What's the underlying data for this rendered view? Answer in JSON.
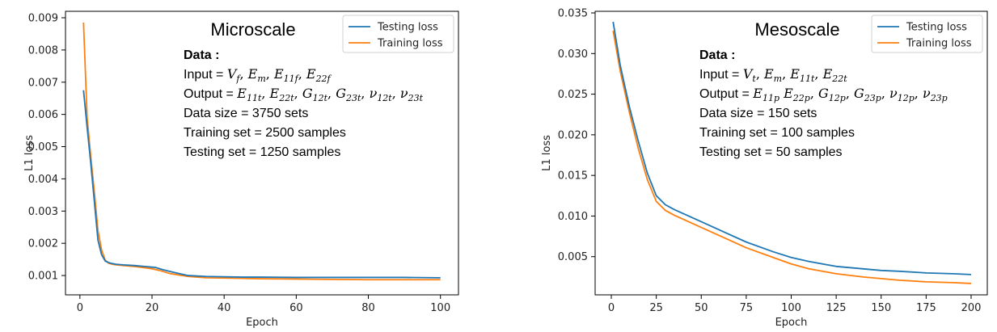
{
  "chart_data": [
    {
      "type": "line",
      "title": "Microscale",
      "xlabel": "Epoch",
      "ylabel": "L1 loss",
      "xlim": [
        -4,
        105
      ],
      "ylim": [
        0.0004,
        0.0092
      ],
      "xticks": [
        0,
        20,
        40,
        60,
        80,
        100
      ],
      "xtick_labels": [
        "0",
        "20",
        "40",
        "60",
        "80",
        "100"
      ],
      "yticks": [
        0.001,
        0.002,
        0.003,
        0.004,
        0.005,
        0.006,
        0.007,
        0.008,
        0.009
      ],
      "ytick_labels": [
        "0.001",
        "0.002",
        "0.003",
        "0.004",
        "0.005",
        "0.006",
        "0.007",
        "0.008",
        "0.009"
      ],
      "legend_position": "top-right",
      "series": [
        {
          "name": "Testing loss",
          "color": "#1f77b4",
          "x": [
            1,
            2,
            3,
            4,
            5,
            6,
            7,
            8,
            9,
            10,
            12,
            15,
            18,
            20,
            21,
            23,
            26,
            30,
            35,
            40,
            45,
            50,
            60,
            70,
            80,
            90,
            100
          ],
          "y": [
            0.00675,
            0.0056,
            0.0045,
            0.0033,
            0.0021,
            0.00165,
            0.00145,
            0.0014,
            0.00137,
            0.00135,
            0.00133,
            0.00131,
            0.00128,
            0.00126,
            0.00125,
            0.00118,
            0.0011,
            0.001,
            0.00097,
            0.00096,
            0.00095,
            0.00095,
            0.00094,
            0.00094,
            0.00094,
            0.00094,
            0.00093
          ]
        },
        {
          "name": "Training loss",
          "color": "#ff7f0e",
          "x": [
            1,
            2,
            3,
            4,
            5,
            6,
            7,
            8,
            9,
            10,
            12,
            15,
            18,
            20,
            22,
            25,
            30,
            35,
            40,
            45,
            50,
            60,
            70,
            80,
            90,
            100
          ],
          "y": [
            0.00885,
            0.0059,
            0.0047,
            0.0036,
            0.0024,
            0.0018,
            0.00148,
            0.00138,
            0.00135,
            0.00133,
            0.00131,
            0.00128,
            0.00124,
            0.00121,
            0.00116,
            0.00106,
            0.00097,
            0.00093,
            0.00092,
            0.00091,
            0.0009,
            0.00089,
            0.00088,
            0.00087,
            0.00087,
            0.00087
          ]
        }
      ],
      "annotation": {
        "heading": "Data :",
        "lines": [
          {
            "prefix": "Input = ",
            "math": "V_f, E_m, E_11f, E_22f"
          },
          {
            "prefix": "Output = ",
            "math": "E_11t, E_22t, G_12t, G_23t, ν_12t, ν_23t"
          },
          {
            "prefix": "Data size = 3750 sets",
            "math": ""
          },
          {
            "prefix": "Training set = 2500 samples",
            "math": ""
          },
          {
            "prefix": "Testing set = 1250 samples",
            "math": ""
          }
        ]
      }
    },
    {
      "type": "line",
      "title": "Mesoscale",
      "xlabel": "Epoch",
      "ylabel": "L1 loss",
      "xlim": [
        -9,
        209
      ],
      "ylim": [
        0.0003,
        0.0352
      ],
      "xticks": [
        0,
        25,
        50,
        75,
        100,
        125,
        150,
        175,
        200
      ],
      "xtick_labels": [
        "0",
        "25",
        "50",
        "75",
        "100",
        "125",
        "150",
        "175",
        "200"
      ],
      "yticks": [
        0.005,
        0.01,
        0.015,
        0.02,
        0.025,
        0.03,
        0.035
      ],
      "ytick_labels": [
        "0.005",
        "0.010",
        "0.015",
        "0.020",
        "0.025",
        "0.030",
        "0.035"
      ],
      "legend_position": "top-right",
      "series": [
        {
          "name": "Testing loss",
          "color": "#1f77b4",
          "x": [
            1,
            5,
            10,
            15,
            20,
            25,
            30,
            35,
            40,
            50,
            60,
            75,
            90,
            100,
            110,
            125,
            140,
            150,
            160,
            175,
            190,
            200
          ],
          "y": [
            0.0339,
            0.0285,
            0.0235,
            0.0192,
            0.0153,
            0.0125,
            0.0114,
            0.0108,
            0.0103,
            0.0093,
            0.0083,
            0.0068,
            0.0056,
            0.0049,
            0.0044,
            0.0038,
            0.0035,
            0.0033,
            0.0032,
            0.003,
            0.0029,
            0.0028
          ]
        },
        {
          "name": "Training loss",
          "color": "#ff7f0e",
          "x": [
            1,
            5,
            10,
            15,
            20,
            25,
            30,
            35,
            40,
            50,
            60,
            75,
            90,
            100,
            110,
            125,
            140,
            150,
            160,
            175,
            190,
            200
          ],
          "y": [
            0.0328,
            0.0278,
            0.0228,
            0.0183,
            0.0145,
            0.0118,
            0.0107,
            0.0101,
            0.0096,
            0.0086,
            0.0076,
            0.0061,
            0.0049,
            0.0041,
            0.0035,
            0.0029,
            0.0025,
            0.0023,
            0.0021,
            0.0019,
            0.0018,
            0.0017
          ]
        }
      ],
      "annotation": {
        "heading": "Data :",
        "lines": [
          {
            "prefix": "Input = ",
            "math": "V_t, E_m, E_11t, E_22t"
          },
          {
            "prefix": "Output = ",
            "math": "E_11p E_22p, G_12p, G_23p, ν_12p, ν_23p"
          },
          {
            "prefix": "Data size = 150 sets",
            "math": ""
          },
          {
            "prefix": "Training set = 100 samples",
            "math": ""
          },
          {
            "prefix": "Testing set = 50 samples",
            "math": ""
          }
        ]
      }
    }
  ]
}
